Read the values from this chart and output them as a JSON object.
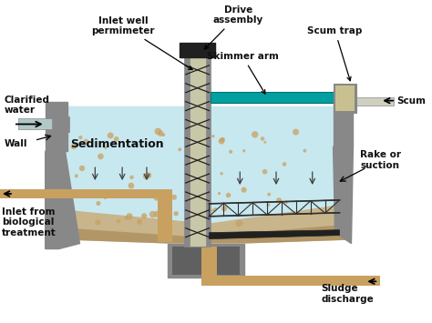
{
  "bg_color": "#ffffff",
  "tank_fill_color": "#c8e8f0",
  "tank_wall_color": "#888888",
  "sludge_color": "#c8a060",
  "sludge_dark": "#a07840",
  "inlet_pipe_color": "#c8a060",
  "skimmer_color": "#00a0a0",
  "labels": {
    "clarified_water": "Clarified\nwater",
    "wall": "Wall",
    "inlet": "Inlet from\nbiological\ntreatment",
    "sedimentation": "Sedimentation",
    "inlet_well": "Inlet well\npermimeter",
    "drive_assembly": "Drive\nassembly",
    "skimmer_arm": "Skimmer arm",
    "scum_trap": "Scum trap",
    "scum": "Scum",
    "rake": "Rake or\nsuction",
    "sludge": "Sludge\ndischarge"
  }
}
